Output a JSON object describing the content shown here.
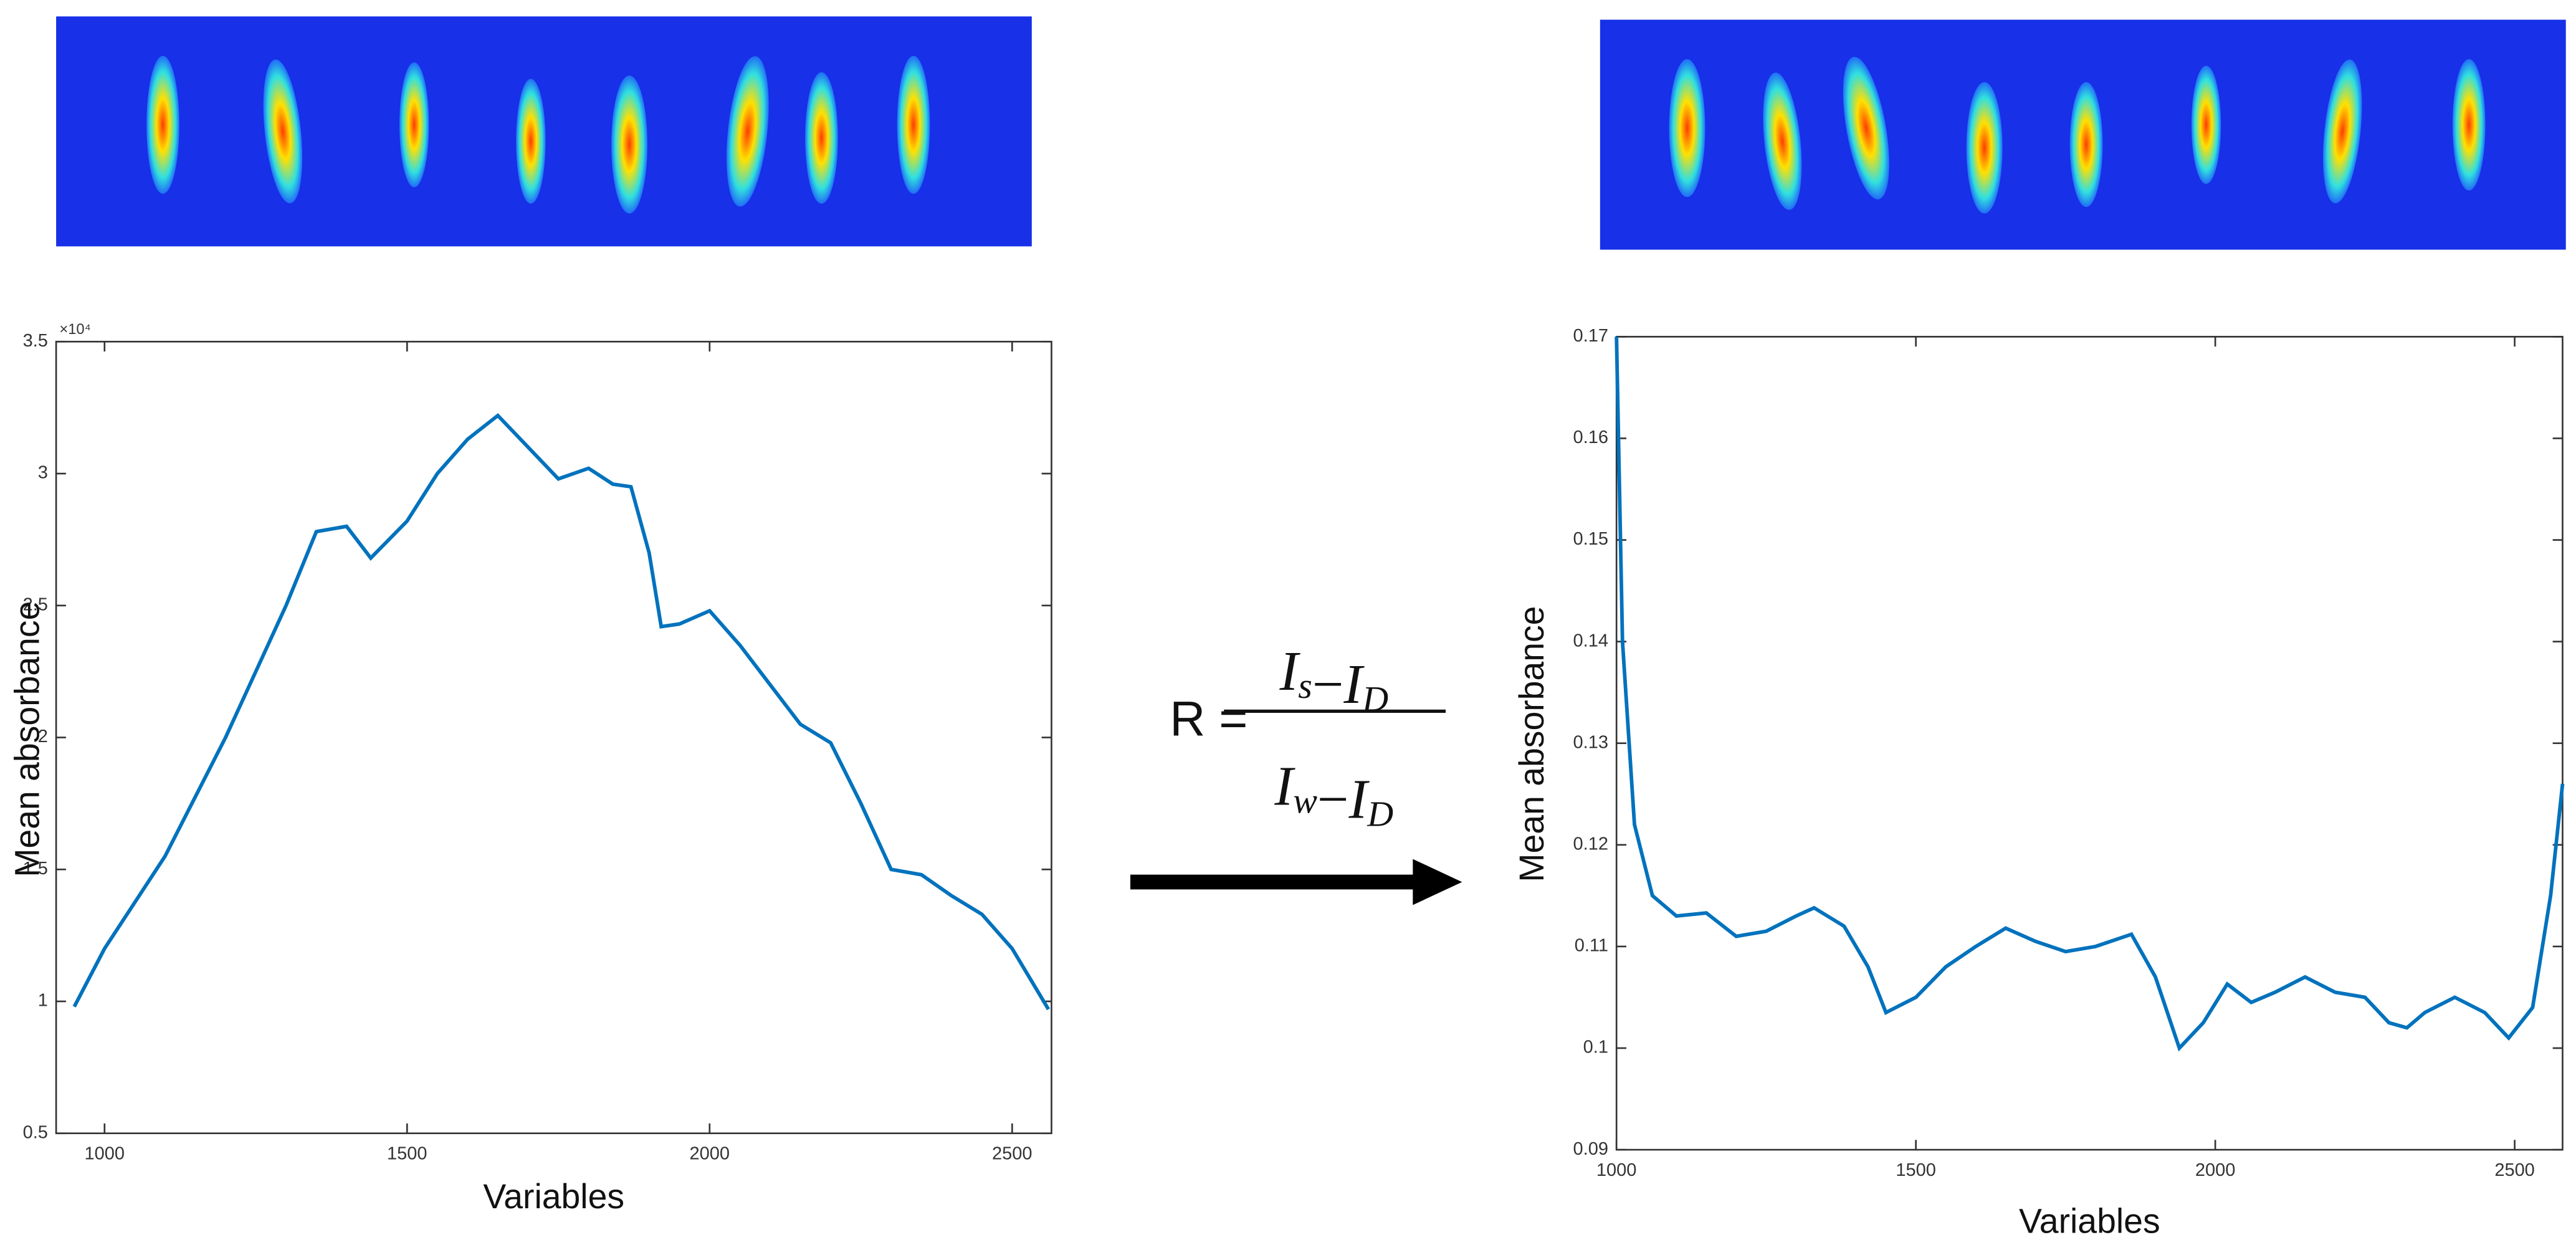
{
  "chart_data": [
    {
      "type": "line",
      "xlabel": "Variables",
      "ylabel": "Mean absorbance",
      "y_offset_text": "×10⁴",
      "color": "#0072bd",
      "x": [
        950,
        1000,
        1100,
        1200,
        1300,
        1350,
        1400,
        1440,
        1500,
        1550,
        1600,
        1650,
        1700,
        1750,
        1800,
        1840,
        1870,
        1900,
        1920,
        1950,
        2000,
        2050,
        2100,
        2150,
        2200,
        2250,
        2300,
        2350,
        2400,
        2450,
        2500,
        2560
      ],
      "values": [
        0.98,
        1.2,
        1.55,
        2.0,
        2.5,
        2.78,
        2.8,
        2.68,
        2.82,
        3.0,
        3.13,
        3.22,
        3.1,
        2.98,
        3.02,
        2.96,
        2.95,
        2.7,
        2.42,
        2.43,
        2.48,
        2.35,
        2.2,
        2.05,
        1.98,
        1.75,
        1.5,
        1.48,
        1.4,
        1.33,
        1.2,
        0.97
      ],
      "xlim": [
        920,
        2565
      ],
      "xticks": [
        1000,
        1500,
        2000,
        2500
      ],
      "ylim": [
        0.5,
        3.5
      ],
      "yticks": [
        0.5,
        1,
        1.5,
        2,
        2.5,
        3,
        3.5
      ]
    },
    {
      "type": "line",
      "xlabel": "Variables",
      "ylabel": "Mean absorbance",
      "color": "#0072bd",
      "x": [
        1000,
        1010,
        1030,
        1060,
        1100,
        1150,
        1200,
        1250,
        1300,
        1330,
        1380,
        1420,
        1450,
        1500,
        1550,
        1600,
        1650,
        1700,
        1750,
        1800,
        1860,
        1900,
        1940,
        1980,
        2020,
        2060,
        2100,
        2150,
        2200,
        2250,
        2290,
        2320,
        2350,
        2400,
        2450,
        2490,
        2530,
        2560,
        2580
      ],
      "values": [
        0.17,
        0.14,
        0.122,
        0.115,
        0.113,
        0.1133,
        0.111,
        0.1115,
        0.113,
        0.1138,
        0.112,
        0.108,
        0.1035,
        0.105,
        0.108,
        0.11,
        0.1118,
        0.1105,
        0.1095,
        0.11,
        0.1112,
        0.107,
        0.1,
        0.1025,
        0.1063,
        0.1045,
        0.1055,
        0.107,
        0.1055,
        0.105,
        0.1025,
        0.102,
        0.1035,
        0.105,
        0.1035,
        0.101,
        0.104,
        0.115,
        0.126
      ],
      "xlim": [
        1000,
        2580
      ],
      "xticks": [
        1000,
        1500,
        2000,
        2500
      ],
      "ylim": [
        0.09,
        0.17
      ],
      "yticks": [
        0.09,
        0.1,
        0.11,
        0.12,
        0.13,
        0.14,
        0.15,
        0.16,
        0.17
      ]
    }
  ],
  "formula": {
    "lhs": "R =",
    "operator": "−",
    "numerator": [
      {
        "base": "I",
        "sub": "s"
      },
      {
        "base": "I",
        "sub": "D"
      }
    ],
    "denominator": [
      {
        "base": "I",
        "sub": "w"
      },
      {
        "base": "I",
        "sub": "D"
      }
    ]
  }
}
